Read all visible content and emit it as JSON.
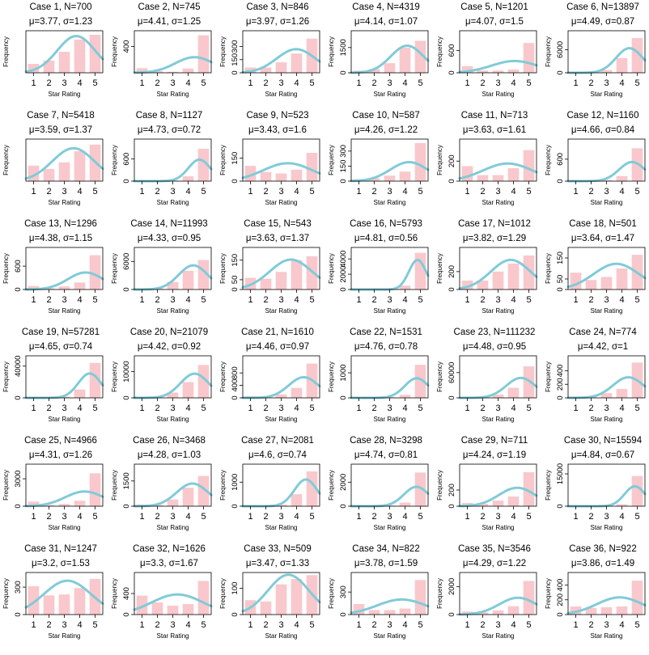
{
  "chart_data": {
    "type": "bar",
    "layout": "6x6 grid of histograms with fitted normal curve",
    "categories": [
      "1",
      "2",
      "3",
      "4",
      "5"
    ],
    "xlabel": "Star Rating",
    "ylabel": "Frequency",
    "colors": {
      "bar": "#f9c8cc",
      "curve": "#80cbd8"
    },
    "panels": [
      {
        "title": "Case 1, N=700",
        "stats": "μ=3.77, σ=1.23",
        "yticks": [],
        "yticklabels": [],
        "ymax": 260,
        "values": [
          55,
          75,
          130,
          205,
          235
        ]
      },
      {
        "title": "Case 2, N=745",
        "stats": "μ=4.41, σ=1.25",
        "yticks": [
          400
        ],
        "yticklabels": [
          "400"
        ],
        "ymax": 640,
        "values": [
          70,
          25,
          15,
          65,
          570
        ]
      },
      {
        "title": "Case 3, N=846",
        "stats": "μ=3.97, σ=1.26",
        "yticks": [
          0,
          150,
          300
        ],
        "yticklabels": [
          "0",
          "150",
          "300"
        ],
        "ymax": 480,
        "values": [
          60,
          60,
          120,
          220,
          390
        ]
      },
      {
        "title": "Case 4, N=4319",
        "stats": "μ=4.14, σ=1.07",
        "yticks": [
          0,
          1500
        ],
        "yticklabels": [
          "0",
          "1500"
        ],
        "ymax": 2500,
        "values": [
          130,
          220,
          570,
          1500,
          1900
        ]
      },
      {
        "title": "Case 5, N=1201",
        "stats": "μ=4.07, σ=1.5",
        "yticks": [
          0,
          600
        ],
        "yticklabels": [
          "0",
          "600"
        ],
        "ymax": 1130,
        "values": [
          180,
          60,
          60,
          90,
          800
        ]
      },
      {
        "title": "Case 6, N=13897",
        "stats": "μ=4.49, σ=0.87",
        "yticks": [
          0,
          6000
        ],
        "yticklabels": [
          "0",
          "6000"
        ],
        "ymax": 10900,
        "values": [
          200,
          200,
          700,
          3800,
          9000
        ]
      },
      {
        "title": "Case 7, N=5418",
        "stats": "μ=3.59, σ=1.37",
        "yticks": [],
        "yticklabels": [],
        "ymax": 1900,
        "values": [
          700,
          550,
          850,
          1350,
          1650
        ]
      },
      {
        "title": "Case 8, N=1127",
        "stats": "μ=4.73, σ=0.72",
        "yticks": [
          0,
          600
        ],
        "yticklabels": [
          "0",
          "600"
        ],
        "ymax": 1140,
        "values": [
          10,
          10,
          20,
          130,
          880
        ]
      },
      {
        "title": "Case 9, N=523",
        "stats": "μ=3.43, σ=1.6",
        "yticks": [
          0,
          150
        ],
        "yticklabels": [
          "0",
          "150"
        ],
        "ymax": 275,
        "values": [
          100,
          60,
          50,
          75,
          185
        ]
      },
      {
        "title": "Case 10, N=587",
        "stats": "μ=4.26, σ=1.22",
        "yticks": [
          0,
          150,
          300
        ],
        "yticklabels": [
          "0",
          "150",
          "300"
        ],
        "ymax": 420,
        "values": [
          20,
          30,
          55,
          95,
          380
        ]
      },
      {
        "title": "Case 11, N=713",
        "stats": "μ=3.63, σ=1.61",
        "yticks": [
          0,
          200
        ],
        "yticklabels": [
          "0",
          "200"
        ],
        "ymax": 420,
        "values": [
          150,
          60,
          60,
          130,
          310
        ]
      },
      {
        "title": "Case 12, N=1160",
        "stats": "μ=4.66, σ=0.84",
        "yticks": [
          0,
          600
        ],
        "yticklabels": [
          "0",
          "600"
        ],
        "ymax": 1150,
        "values": [
          20,
          10,
          30,
          140,
          900
        ]
      },
      {
        "title": "Case 13, N=1296",
        "stats": "μ=4.38, σ=1.15",
        "yticks": [
          0,
          600
        ],
        "yticklabels": [
          "0",
          "600"
        ],
        "ymax": 1080,
        "values": [
          90,
          30,
          80,
          180,
          880
        ]
      },
      {
        "title": "Case 14, N=11993",
        "stats": "μ=4.33, σ=0.95",
        "yticks": [
          0,
          6000
        ],
        "yticklabels": [
          "0",
          "6000"
        ],
        "ymax": 9000,
        "values": [
          100,
          300,
          1600,
          4000,
          6300
        ]
      },
      {
        "title": "Case 15, N=543",
        "stats": "μ=3.63, σ=1.37",
        "yticks": [
          0,
          50,
          150
        ],
        "yticklabels": [
          "0",
          "50",
          "150"
        ],
        "ymax": 215,
        "values": [
          60,
          55,
          90,
          150,
          170
        ]
      },
      {
        "title": "Case 16, N=5793",
        "stats": "μ=4.81, σ=0.56",
        "yticks": [
          0,
          2000,
          4000
        ],
        "yticklabels": [
          "0",
          "2000",
          "4000"
        ],
        "ymax": 5500,
        "values": [
          40,
          20,
          70,
          500,
          4800
        ]
      },
      {
        "title": "Case 17, N=1012",
        "stats": "μ=3.82, σ=1.29",
        "yticks": [
          0,
          200
        ],
        "yticklabels": [
          "0",
          "200"
        ],
        "ymax": 470,
        "values": [
          100,
          100,
          200,
          290,
          380
        ]
      },
      {
        "title": "Case 18, N=501",
        "stats": "μ=3.64, σ=1.47",
        "yticks": [
          0,
          50,
          150
        ],
        "yticklabels": [
          "0",
          "50",
          "150"
        ],
        "ymax": 200,
        "values": [
          80,
          45,
          60,
          100,
          165
        ]
      },
      {
        "title": "Case 19, N=57281",
        "stats": "μ=4.65, σ=0.74",
        "yticks": [
          0,
          40000
        ],
        "yticklabels": [
          "0",
          "40000"
        ],
        "ymax": 53000,
        "values": [
          500,
          500,
          1500,
          10500,
          44000
        ]
      },
      {
        "title": "Case 20, N=21079",
        "stats": "μ=4.42, σ=0.92",
        "yticks": [
          0,
          10000
        ],
        "yticklabels": [
          "0",
          "10000"
        ],
        "ymax": 16000,
        "values": [
          300,
          400,
          2000,
          6000,
          12500
        ]
      },
      {
        "title": "Case 21, N=1610",
        "stats": "μ=4.46, σ=0.97",
        "yticks": [
          0,
          400,
          800
        ],
        "yticklabels": [
          "0",
          "400",
          "800"
        ],
        "ymax": 1350,
        "values": [
          50,
          30,
          110,
          320,
          1100
        ]
      },
      {
        "title": "Case 22, N=1531",
        "stats": "μ=4.76, σ=0.78",
        "yticks": [
          0,
          1000
        ],
        "yticklabels": [
          "0",
          "1000"
        ],
        "ymax": 1680,
        "values": [
          40,
          20,
          30,
          120,
          1320
        ]
      },
      {
        "title": "Case 23, N=111232",
        "stats": "μ=4.48, σ=0.95",
        "yticks": [
          0,
          60000
        ],
        "yticklabels": [
          "0",
          "60000"
        ],
        "ymax": 100000,
        "values": [
          3000,
          3000,
          8000,
          24000,
          75000
        ]
      },
      {
        "title": "Case 24, N=774",
        "stats": "μ=4.42, σ=1",
        "yticks": [
          0,
          200,
          400
        ],
        "yticklabels": [
          "0",
          "200",
          "400"
        ],
        "ymax": 620,
        "values": [
          20,
          20,
          70,
          130,
          520
        ]
      },
      {
        "title": "Case 25, N=4966",
        "stats": "μ=4.31, σ=1.26",
        "yticks": [
          0,
          3000
        ],
        "yticklabels": [
          "0",
          "3000"
        ],
        "ymax": 4600,
        "values": [
          500,
          130,
          250,
          600,
          3600
        ]
      },
      {
        "title": "Case 26, N=3468",
        "stats": "μ=4.28, σ=1.03",
        "yticks": [
          0,
          1500
        ],
        "yticklabels": [
          "0",
          "1500"
        ],
        "ymax": 2500,
        "values": [
          100,
          80,
          400,
          1100,
          1800
        ]
      },
      {
        "title": "Case 27, N=2081",
        "stats": "μ=4.6, σ=0.74",
        "yticks": [
          0,
          1000
        ],
        "yticklabels": [
          "0",
          "1000"
        ],
        "ymax": 1750,
        "values": [
          30,
          20,
          60,
          500,
          1450
        ]
      },
      {
        "title": "Case 28, N=3298",
        "stats": "μ=4.74, σ=0.81",
        "yticks": [
          0,
          2000
        ],
        "yticklabels": [
          "0",
          "2000"
        ],
        "ymax": 3500,
        "values": [
          80,
          30,
          70,
          300,
          2800
        ]
      },
      {
        "title": "Case 29, N=711",
        "stats": "μ=4.24, σ=1.19",
        "yticks": [
          0,
          200
        ],
        "yticklabels": [
          "0",
          "200"
        ],
        "ymax": 520,
        "values": [
          40,
          30,
          70,
          120,
          420
        ]
      },
      {
        "title": "Case 30, N=15594",
        "stats": "μ=4.84, σ=0.67",
        "yticks": [
          0,
          15000
        ],
        "yticklabels": [
          "0",
          "15000"
        ],
        "ymax": 19500,
        "values": [
          300,
          100,
          200,
          900,
          14000
        ]
      },
      {
        "title": "Case 31, N=1247",
        "stats": "μ=3.2, σ=1.53",
        "yticks": [
          0,
          300
        ],
        "yticklabels": [
          "0",
          "300"
        ],
        "ymax": 460,
        "values": [
          310,
          210,
          220,
          290,
          390
        ]
      },
      {
        "title": "Case 32, N=1626",
        "stats": "μ=3.3, σ=1.67",
        "yticks": [
          0,
          400
        ],
        "yticklabels": [
          "0",
          "400"
        ],
        "ymax": 800,
        "values": [
          360,
          230,
          170,
          200,
          640
        ]
      },
      {
        "title": "Case 33, N=509",
        "stats": "μ=3.47, σ=1.33",
        "yticks": [
          0,
          100
        ],
        "yticklabels": [
          "0",
          "100"
        ],
        "ymax": 160,
        "values": [
          55,
          50,
          115,
          135,
          150
        ]
      },
      {
        "title": "Case 34, N=822",
        "stats": "μ=3.78, σ=1.59",
        "yticks": [
          0,
          300
        ],
        "yticklabels": [
          "0",
          "300"
        ],
        "ymax": 560,
        "values": [
          140,
          60,
          60,
          80,
          460
        ]
      },
      {
        "title": "Case 35, N=3546",
        "stats": "μ=4.29, σ=1.22",
        "yticks": [
          0,
          2000
        ],
        "yticklabels": [
          "0",
          "2000"
        ],
        "ymax": 3000,
        "values": [
          220,
          150,
          300,
          600,
          2400
        ]
      },
      {
        "title": "Case 36, N=922",
        "stats": "μ=3.86, σ=1.49",
        "yticks": [
          0,
          200,
          400
        ],
        "yticklabels": [
          "0",
          "200",
          "400"
        ],
        "ymax": 570,
        "values": [
          110,
          90,
          100,
          110,
          460
        ]
      }
    ]
  }
}
